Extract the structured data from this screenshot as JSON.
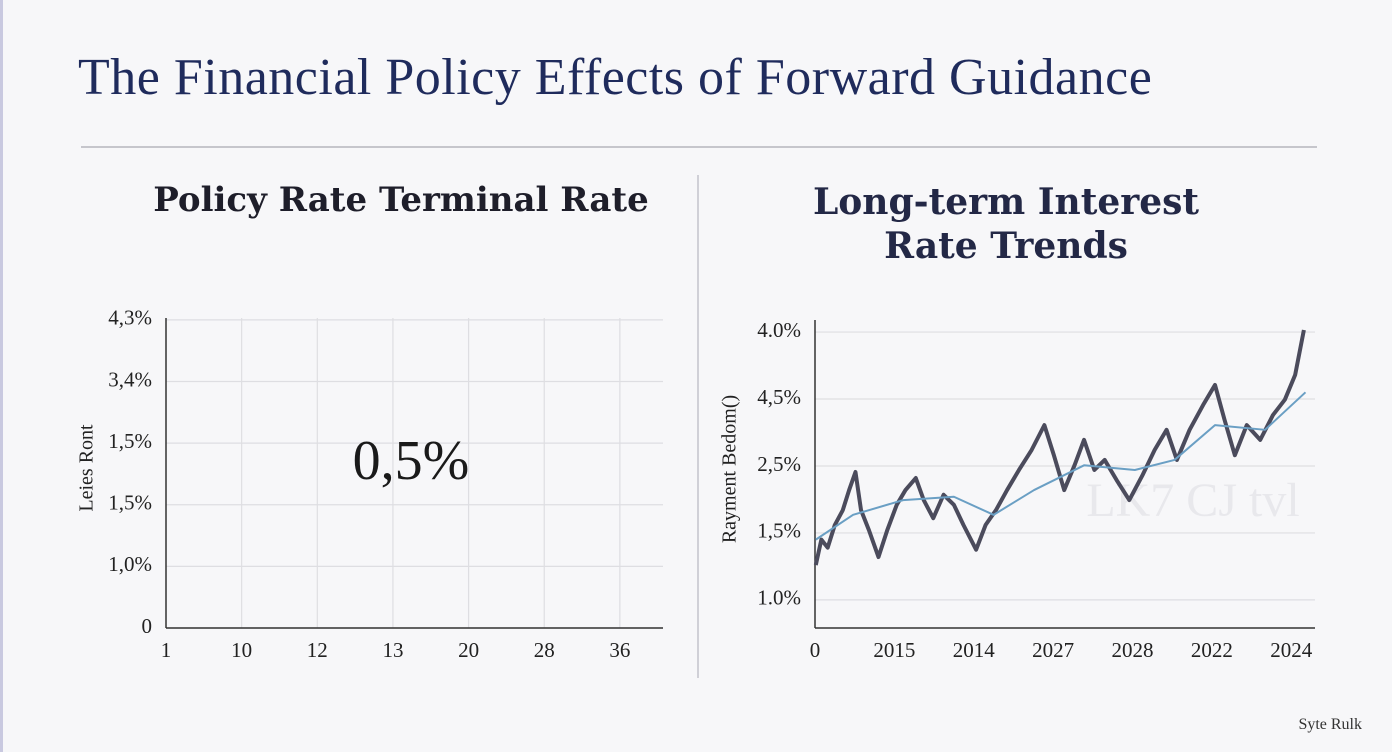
{
  "title": "The Financial Policy Effects of Forward Guidance",
  "footer": "Syte Rulk",
  "chart_data": [
    {
      "type": "line",
      "title": "Policy Rate Terminal Rate",
      "y_label": "Leies Ront",
      "annotation": "0,5%",
      "x_categories": [
        "1",
        "10",
        "12",
        "13",
        "20",
        "28",
        "36"
      ],
      "y_categories": [
        "0",
        "1,0%",
        "1,5%",
        "1,5%",
        "3,4%",
        "4,3%"
      ],
      "xlim": [
        0,
        6.57
      ],
      "ylim": [
        0,
        5.03
      ],
      "grid": "both",
      "series": []
    },
    {
      "type": "line",
      "title": "Long-term Interest Rate Trends",
      "y_label": "Rayment Bedom()",
      "annotation": "LK7 CJ tvl",
      "x_categories": [
        "0",
        "2015",
        "2014",
        "2027",
        "2028",
        "2022",
        "2024"
      ],
      "y_categories": [
        "1.0%",
        "1,5%",
        "2,5%",
        "4,5%",
        "4.0%"
      ],
      "xlim": [
        0,
        6.3
      ],
      "ylim": [
        -0.42,
        4.18
      ],
      "grid": "y",
      "series": [
        {
          "color": "#4b4b5c",
          "width": 4,
          "x": [
            0.01,
            0.08,
            0.16,
            0.25,
            0.35,
            0.43,
            0.51,
            0.58,
            0.68,
            0.8,
            0.91,
            1.03,
            1.14,
            1.27,
            1.37,
            1.49,
            1.62,
            1.75,
            1.87,
            2.03,
            2.15,
            2.28,
            2.42,
            2.57,
            2.73,
            2.89,
            3.01,
            3.14,
            3.27,
            3.39,
            3.52,
            3.65,
            3.8,
            3.96,
            4.13,
            4.28,
            4.43,
            4.56,
            4.72,
            4.89,
            5.04,
            5.16,
            5.29,
            5.44,
            5.61,
            5.77,
            5.92,
            6.05,
            6.16
          ],
          "values": [
            0.52,
            0.9,
            0.78,
            1.12,
            1.34,
            1.64,
            1.91,
            1.34,
            1.04,
            0.64,
            1.04,
            1.42,
            1.64,
            1.82,
            1.49,
            1.22,
            1.57,
            1.42,
            1.12,
            0.75,
            1.12,
            1.34,
            1.64,
            1.94,
            2.24,
            2.61,
            2.16,
            1.64,
            2.01,
            2.39,
            1.94,
            2.09,
            1.79,
            1.49,
            1.87,
            2.24,
            2.54,
            2.09,
            2.54,
            2.91,
            3.21,
            2.69,
            2.16,
            2.61,
            2.39,
            2.76,
            2.99,
            3.36,
            4.03
          ]
        },
        {
          "color": "#6a9fc4",
          "width": 2,
          "x": [
            0.01,
            0.48,
            1.11,
            1.75,
            2.25,
            2.76,
            3.39,
            4.03,
            4.53,
            5.04,
            5.67,
            6.18
          ],
          "values": [
            0.9,
            1.27,
            1.49,
            1.54,
            1.27,
            1.64,
            2.01,
            1.94,
            2.09,
            2.61,
            2.54,
            3.1
          ]
        }
      ]
    }
  ]
}
